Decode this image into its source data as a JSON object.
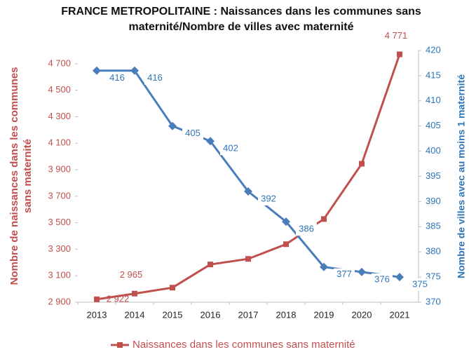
{
  "chart_data": {
    "type": "line",
    "title": "FRANCE METROPOLITAINE : Naissances dans les communes sans maternité/Nombre de villes avec maternité",
    "ylabel": "Nombre de naissances dans les communes sans maternité",
    "y2label": "Nombre de villes avec au moins 1 maternité",
    "categories": [
      "2013",
      "2014",
      "2015",
      "2016",
      "2017",
      "2018",
      "2019",
      "2020",
      "2021"
    ],
    "series": [
      {
        "name": "Naissances dans les communes sans maternité",
        "color": "#c0504d",
        "marker": "square",
        "values": [
          2922,
          2965,
          3010,
          3185,
          3227,
          3338,
          3528,
          3945,
          4771
        ],
        "value_labels": [
          "2 922",
          "2 965",
          null,
          null,
          null,
          null,
          null,
          null,
          "4 771"
        ]
      },
      {
        "color": "#4a7ebb",
        "marker": "diamond",
        "axis": "y2",
        "values": [
          416,
          416,
          405,
          402,
          392,
          386,
          377,
          376,
          375
        ]
      }
    ],
    "ylim": [
      2900,
      4800
    ],
    "yticks": [
      {
        "value": 2900,
        "label": "2 900"
      },
      {
        "value": 3100,
        "label": "3 100"
      },
      {
        "value": 3300,
        "label": "3 300"
      },
      {
        "value": 3500,
        "label": "3 500"
      },
      {
        "value": 3700,
        "label": "3 700"
      },
      {
        "value": 3900,
        "label": "3 900"
      },
      {
        "value": 4100,
        "label": "4 100"
      },
      {
        "value": 4300,
        "label": "4 300"
      },
      {
        "value": 4500,
        "label": "4 500"
      },
      {
        "value": 4700,
        "label": "4 700"
      }
    ],
    "y2lim": [
      370,
      420
    ],
    "y2ticks": [
      370,
      375,
      380,
      385,
      390,
      395,
      400,
      405,
      410,
      415,
      420
    ],
    "grid": false,
    "legend": "bottom"
  }
}
